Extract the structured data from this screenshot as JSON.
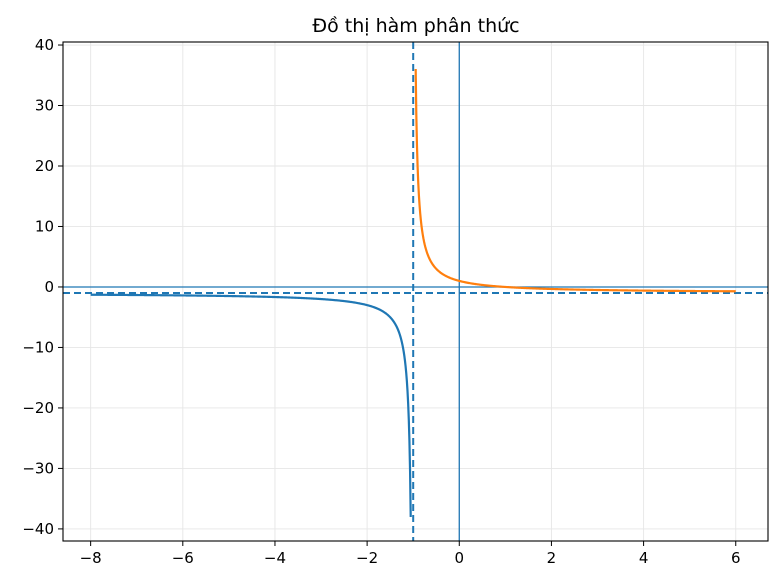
{
  "chart_data": {
    "type": "line",
    "title": "Đồ thị hàm phân thức",
    "xlabel": "",
    "ylabel": "",
    "xlim": [
      -8.6,
      6.7
    ],
    "ylim": [
      -42,
      40.5
    ],
    "x_ticks": [
      -8,
      -6,
      -4,
      -2,
      0,
      2,
      4,
      6
    ],
    "x_tick_labels": [
      "−8",
      "−6",
      "−4",
      "−2",
      "0",
      "2",
      "4",
      "6"
    ],
    "y_ticks": [
      -40,
      -30,
      -20,
      -10,
      0,
      10,
      20,
      30,
      40
    ],
    "y_tick_labels": [
      "−40",
      "−30",
      "−20",
      "−10",
      "0",
      "10",
      "20",
      "30",
      "40"
    ],
    "grid": true,
    "function": {
      "formula": "(1 - x) / (x + 1)",
      "vertical_asymptote": -1,
      "horizontal_asymptote": -1
    },
    "series": [
      {
        "color": "#1f77b4",
        "x_range": [
          -8,
          -1.054
        ],
        "points": [
          [
            -8,
            -1.286
          ],
          [
            -6,
            -1.4
          ],
          [
            -4,
            -1.667
          ],
          [
            -3,
            -2
          ],
          [
            -2,
            -3
          ],
          [
            -1.5,
            -5
          ],
          [
            -1.2,
            -11
          ],
          [
            -1.1,
            -21
          ],
          [
            -1.054,
            -38.04
          ]
        ]
      },
      {
        "color": "#ff7f0e",
        "x_range": [
          -0.946,
          6
        ],
        "points": [
          [
            -0.946,
            36.04
          ],
          [
            -0.9,
            19
          ],
          [
            -0.5,
            3
          ],
          [
            0,
            1
          ],
          [
            1,
            0
          ],
          [
            2,
            -0.333
          ],
          [
            4,
            -0.6
          ],
          [
            6,
            -0.714
          ]
        ]
      }
    ],
    "reference_lines": [
      {
        "orientation": "vertical",
        "value": -1,
        "style": "dashed",
        "color": "#1f77b4"
      },
      {
        "orientation": "horizontal",
        "value": -1,
        "style": "dashed",
        "color": "#1f77b4"
      },
      {
        "orientation": "vertical",
        "value": 0,
        "style": "solid",
        "color": "#1f77b4"
      },
      {
        "orientation": "horizontal",
        "value": 0,
        "style": "solid",
        "color": "#1f77b4"
      }
    ]
  }
}
